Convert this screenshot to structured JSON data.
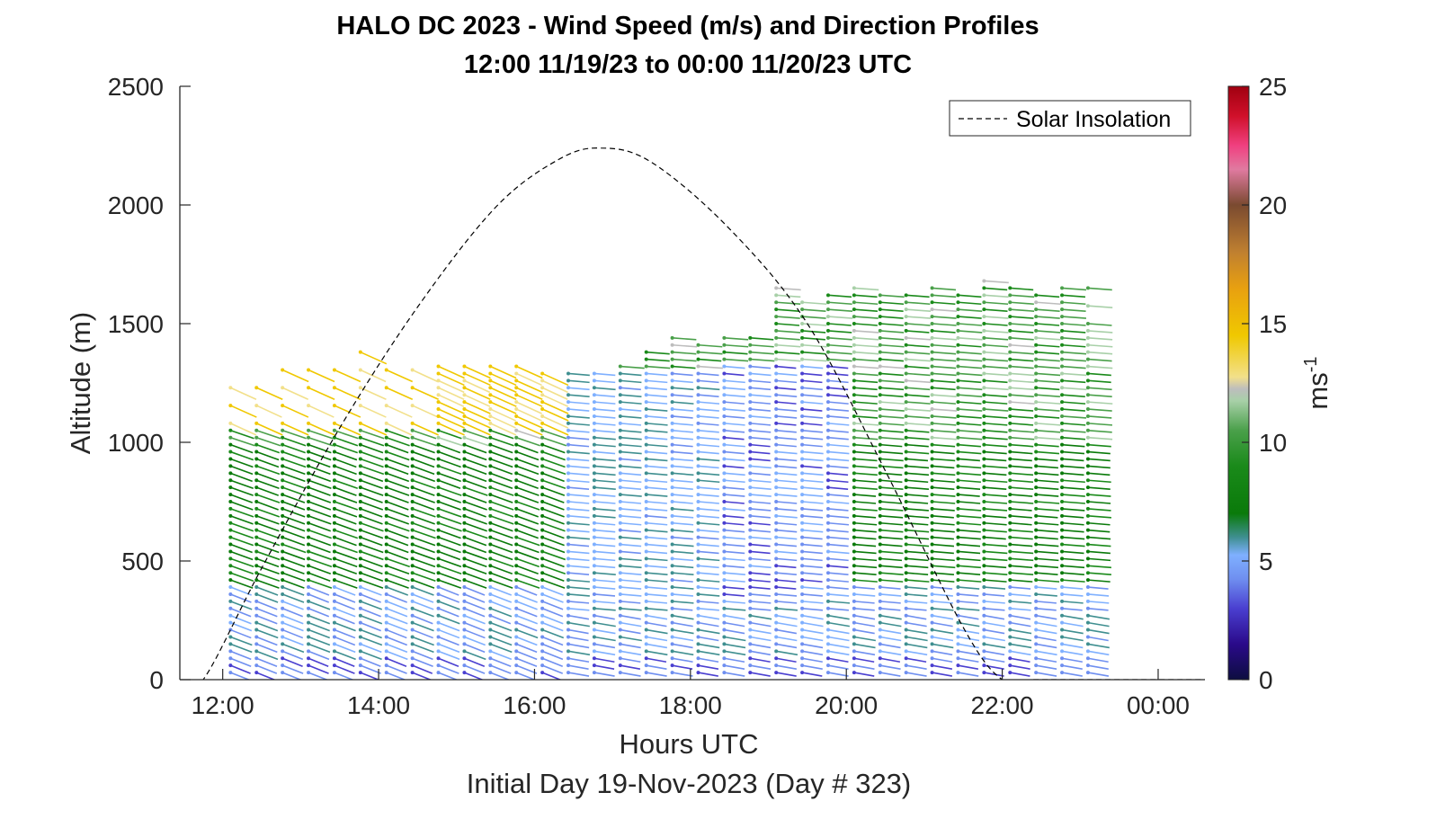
{
  "chart_data": {
    "type": "quiver",
    "title_line1": "HALO DC 2023 - Wind Speed (m/s) and Direction Profiles",
    "title_line2": "12:00 11/19/23 to 00:00 11/20/23  UTC",
    "xlabel": "Hours UTC",
    "xlabel_sub": "Initial Day 19-Nov-2023 (Day # 323)",
    "ylabel": "Altitude (m)",
    "xlim": [
      11.45,
      24.6
    ],
    "ylim": [
      0,
      2500
    ],
    "x_ticks": [
      12,
      14,
      16,
      18,
      20,
      22,
      24
    ],
    "x_tick_labels": [
      "12:00",
      "14:00",
      "16:00",
      "18:00",
      "20:00",
      "22:00",
      "00:00"
    ],
    "y_ticks": [
      0,
      500,
      1000,
      1500,
      2000,
      2500
    ],
    "y_tick_labels": [
      "0",
      "500",
      "1000",
      "1500",
      "2000",
      "2500"
    ],
    "legend": {
      "label": "Solar Insolation",
      "position": "top-right"
    },
    "colorbar": {
      "label_base": "ms",
      "label_exp": "-1",
      "range": [
        0,
        25
      ],
      "ticks": [
        0,
        5,
        10,
        15,
        20,
        25
      ],
      "tick_labels": [
        "0",
        "5",
        "10",
        "15",
        "20",
        "25"
      ]
    },
    "solar_insolation": {
      "style": "dashed",
      "x": [
        11.45,
        11.75,
        12.5,
        13.5,
        14.5,
        15.5,
        16.3,
        16.85,
        17.5,
        18.5,
        19.5,
        20.5,
        21.5,
        22.0,
        22.4,
        24.6
      ],
      "y": [
        0,
        0,
        470,
        1060,
        1570,
        1990,
        2190,
        2240,
        2180,
        1900,
        1500,
        880,
        220,
        0,
        0,
        0
      ]
    },
    "profiles": {
      "time_start": 12.1,
      "time_end": 23.1,
      "count": 34,
      "top_altitude_m": [
        1255,
        1285,
        1320,
        1340,
        1370,
        1400,
        1375,
        1360,
        1360,
        1330,
        1320,
        1320,
        1290,
        1300,
        1290,
        1330,
        1400,
        1450,
        1430,
        1460,
        1440,
        1660,
        1610,
        1620,
        1650,
        1640,
        1640,
        1660,
        1640,
        1690,
        1660,
        1620,
        1660,
        1650
      ],
      "dense_top_altitude_m": [
        1060,
        1080,
        1080,
        1060,
        1060,
        1080,
        1080,
        1060,
        1300,
        1300,
        1300,
        1300,
        1300,
        1300,
        1300,
        1300,
        1400,
        1450,
        1420,
        1460,
        1440,
        1660,
        1600,
        1620,
        1640,
        1640,
        1640,
        1660,
        1640,
        1690,
        1660,
        1610,
        1650,
        1500
      ],
      "speed_by_layer_ms": {
        "surface_0_100m": 3.5,
        "low_100_400m": 5.0,
        "mid_400_1000m": 8.5,
        "upper_1000_1700m": 10.5
      }
    }
  }
}
